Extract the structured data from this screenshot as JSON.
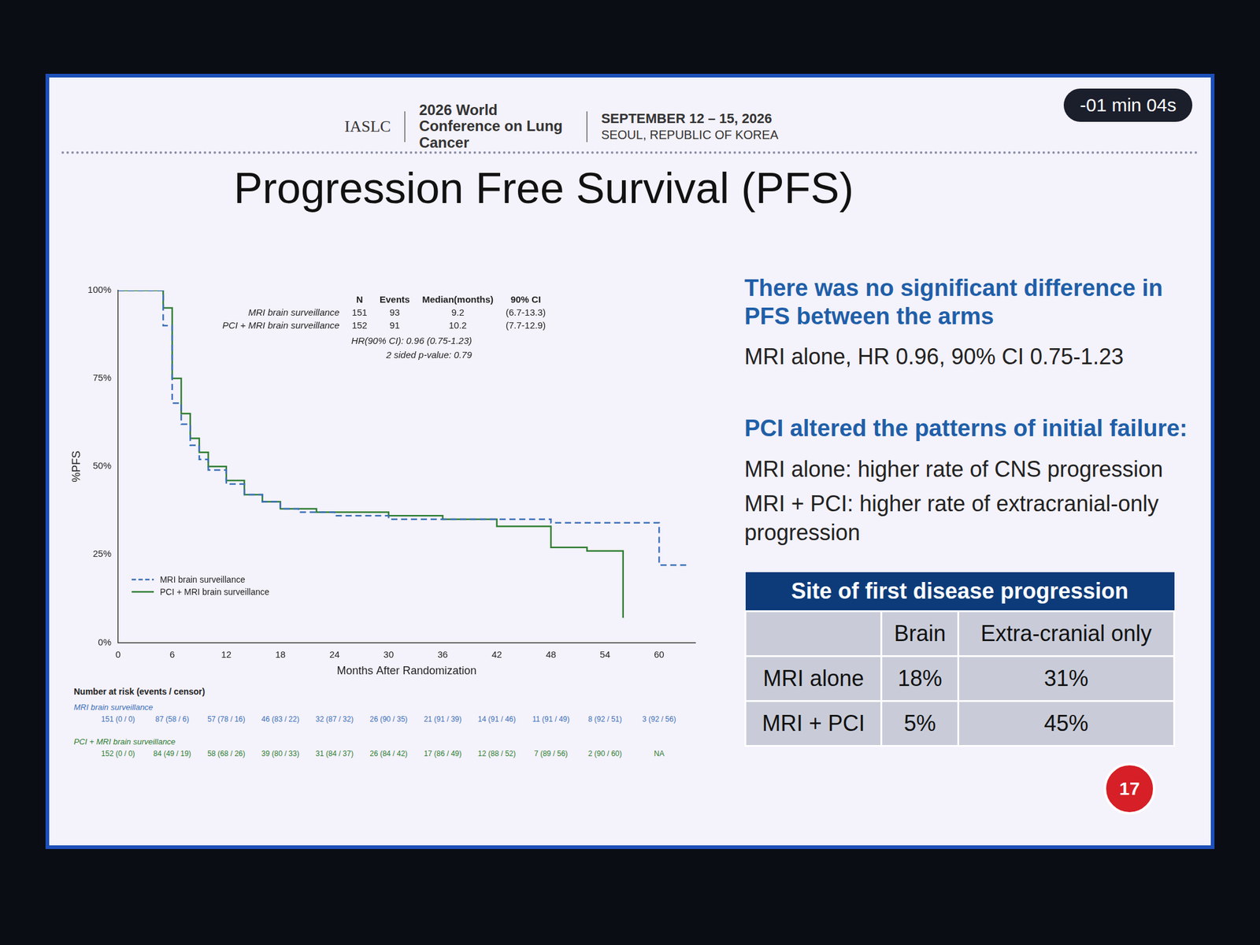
{
  "slide": {
    "timer": "-01 min 04s",
    "header": {
      "logo": "IASLC",
      "conference": "2026 World Conference on Lung Cancer",
      "dates": "SEPTEMBER 12 – 15, 2026",
      "location": "SEOUL, REPUBLIC OF KOREA"
    },
    "title": "Progression Free Survival (PFS)",
    "findings": [
      {
        "heading": "There was no significant difference in PFS between the arms",
        "text": [
          "MRI alone, HR 0.96, 90% CI 0.75-1.23"
        ]
      },
      {
        "heading": "PCI altered the patterns of initial failure:",
        "text": [
          "MRI alone: higher rate of CNS progression",
          "MRI + PCI: higher rate of extracranial-only progression"
        ]
      }
    ],
    "table": {
      "title": "Site of first disease progression",
      "columns": [
        null,
        "Brain",
        "Extra-cranial only"
      ],
      "rows": [
        [
          "MRI alone",
          "18%",
          "31%"
        ],
        [
          "MRI + PCI",
          "5%",
          "45%"
        ]
      ]
    },
    "page_number": "17"
  },
  "chart_data": {
    "type": "line",
    "x_label": "Months After Randomization",
    "y_label": "%PFS",
    "xlim": [
      0,
      64
    ],
    "xticks": [
      0,
      6,
      12,
      18,
      24,
      30,
      36,
      42,
      48,
      54,
      60
    ],
    "ylim": [
      0,
      100
    ],
    "yticks": [
      {
        "value": 0,
        "label": "0%"
      },
      {
        "value": 25,
        "label": "25%"
      },
      {
        "value": 50,
        "label": "50%"
      },
      {
        "value": 75,
        "label": "75%"
      },
      {
        "value": 100,
        "label": "100%"
      }
    ],
    "grid": false,
    "legend": "lower left",
    "series": [
      {
        "name": "MRI brain surveillance",
        "color": "#3a6fb8",
        "line_style": "dashed",
        "x": [
          0,
          4,
          5,
          6,
          7,
          8,
          9,
          10,
          12,
          14,
          16,
          18,
          20,
          24,
          30,
          36,
          42,
          48,
          54,
          60,
          63
        ],
        "values": [
          100,
          100,
          90,
          68,
          62,
          56,
          52,
          49,
          45,
          42,
          40,
          38,
          37,
          36,
          35,
          35,
          35,
          34,
          34,
          22,
          22
        ]
      },
      {
        "name": "PCI + MRI brain surveillance",
        "color": "#2e7d32",
        "line_style": "solid",
        "x": [
          0,
          4,
          5,
          6,
          7,
          8,
          9,
          10,
          12,
          14,
          16,
          18,
          22,
          30,
          36,
          42,
          48,
          52,
          56
        ],
        "values": [
          100,
          100,
          95,
          75,
          65,
          58,
          54,
          50,
          46,
          42,
          40,
          38,
          37,
          36,
          35,
          33,
          27,
          26,
          7
        ]
      }
    ],
    "summary_table": {
      "columns": [
        "N",
        "Events",
        "Median(months)",
        "90% CI"
      ],
      "rows": [
        [
          "MRI brain surveillance",
          "151",
          "93",
          "9.2",
          "(6.7-13.3)"
        ],
        [
          "PCI + MRI brain surveillance",
          "152",
          "91",
          "10.2",
          "(7.7-12.9)"
        ]
      ]
    },
    "annotations": [
      [
        "HR(90% CI):",
        "0.96 (0.75-1.23)"
      ],
      [
        "2 sided p-value:",
        "0.79"
      ]
    ],
    "at_risk": {
      "title": "Number at risk (events / censor)",
      "rows": [
        {
          "name": "MRI brain surveillance",
          "values": [
            "151 (0 / 0)",
            "87 (58 / 6)",
            "57 (78 / 16)",
            "46 (83 / 22)",
            "32 (87 / 32)",
            "26 (90 / 35)",
            "21 (91 / 39)",
            "14 (91 / 46)",
            "11 (91 / 49)",
            "8 (92 / 51)",
            "3 (92 / 56)"
          ]
        },
        {
          "name": "PCI + MRI brain surveillance",
          "values": [
            "152 (0 / 0)",
            "84 (49 / 19)",
            "58 (68 / 26)",
            "39 (80 / 33)",
            "31 (84 / 37)",
            "26 (84 / 42)",
            "17 (86 / 49)",
            "12 (88 / 52)",
            "7 (89 / 56)",
            "2 (90 / 60)",
            "NA"
          ]
        }
      ]
    }
  }
}
